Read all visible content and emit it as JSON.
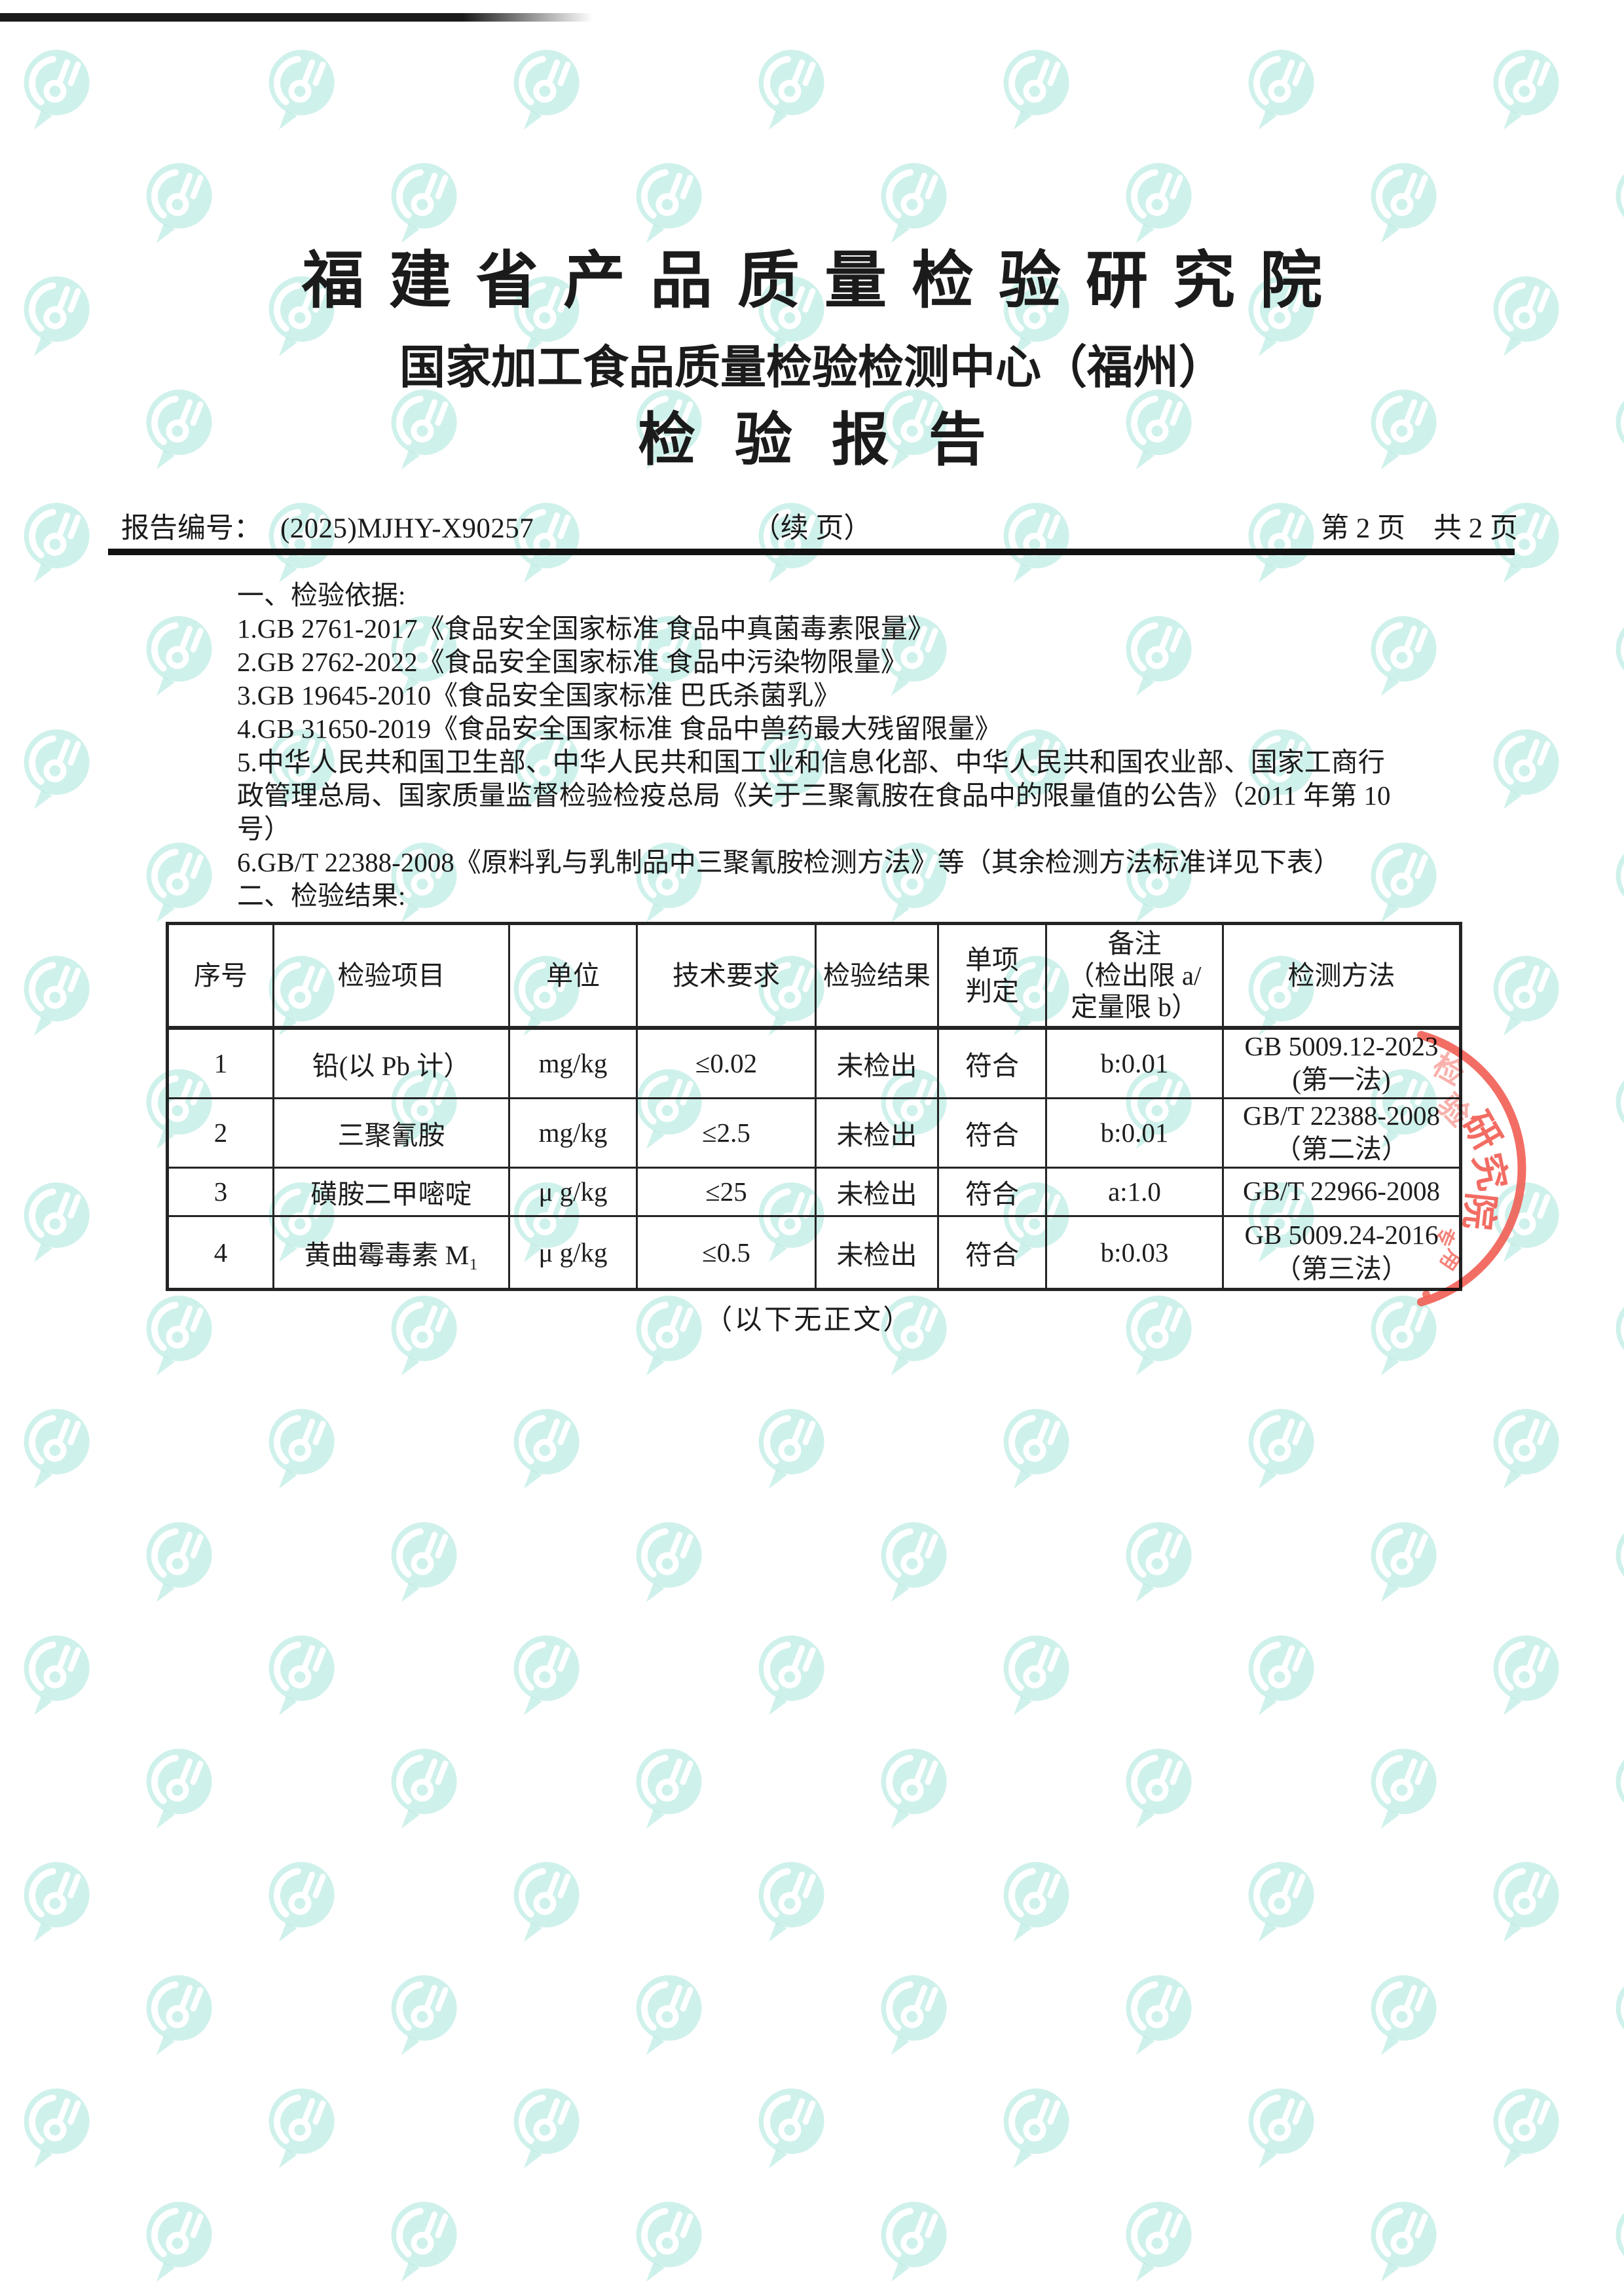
{
  "page": {
    "title_org": "福建省产品质量检验研究院",
    "title_center": "国家加工食品质量检验检测中心（福州）",
    "title_report": "检验报告",
    "meta": {
      "report_no_label": "报告编号：",
      "report_no": "(2025)MJHY-X90257",
      "continued_note": "（续 页）",
      "page_info": "第 2 页　共 2 页"
    },
    "section_basis": {
      "heading": "一、检验依据:",
      "lines": [
        "1.GB 2761-2017《食品安全国家标准 食品中真菌毒素限量》",
        "2.GB 2762-2022《食品安全国家标准 食品中污染物限量》",
        "3.GB 19645-2010《食品安全国家标准 巴氏杀菌乳》",
        "4.GB 31650-2019《食品安全国家标准 食品中兽药最大残留限量》",
        "5.中华人民共和国卫生部、中华人民共和国工业和信息化部、中华人民共和国农业部、国家工商行",
        "政管理总局、国家质量监督检验检疫总局《关于三聚氰胺在食品中的限量值的公告》（2011 年第 10",
        "号）",
        "6.GB/T 22388-2008《原料乳与乳制品中三聚氰胺检测方法》等（其余检测方法标准详见下表）"
      ]
    },
    "section_results": {
      "heading": "二、检验结果:",
      "table": {
        "headers": [
          "序号",
          "检验项目",
          "单位",
          "技术要求",
          "检验结果",
          "单项\n判定",
          "备注\n（检出限 a/\n定量限 b）",
          "检测方法"
        ],
        "rows": [
          {
            "no": "1",
            "item": "铅(以 Pb 计）",
            "unit": "mg/kg",
            "requirement": "≤0.02",
            "result": "未检出",
            "judgement": "符合",
            "remark": "b:0.01",
            "method": "GB 5009.12-2023\n(第一法)"
          },
          {
            "no": "2",
            "item": "三聚氰胺",
            "unit": "mg/kg",
            "requirement": "≤2.5",
            "result": "未检出",
            "judgement": "符合",
            "remark": "b:0.01",
            "method": "GB/T 22388-2008\n（第二法）"
          },
          {
            "no": "3",
            "item": "磺胺二甲嘧啶",
            "unit": "μ g/kg",
            "requirement": "≤25",
            "result": "未检出",
            "judgement": "符合",
            "remark": "a:1.0",
            "method": "GB/T 22966-2008"
          },
          {
            "no": "4",
            "item": "黄曲霉毒素 M₁",
            "unit": "μ g/kg",
            "requirement": "≤0.5",
            "result": "未检出",
            "judgement": "符合",
            "remark": "b:0.03",
            "method": "GB 5009.24-2016\n（第三法）"
          }
        ]
      },
      "end_note": "（以下无正文）"
    },
    "stamp": {
      "large_chars": [
        "研",
        "究",
        "院"
      ],
      "faded_chars": [
        "检",
        "验"
      ],
      "small_chars": [
        "专",
        "用"
      ],
      "color": "#f1594e"
    },
    "watermark": {
      "color": "#9fe3d7"
    }
  }
}
